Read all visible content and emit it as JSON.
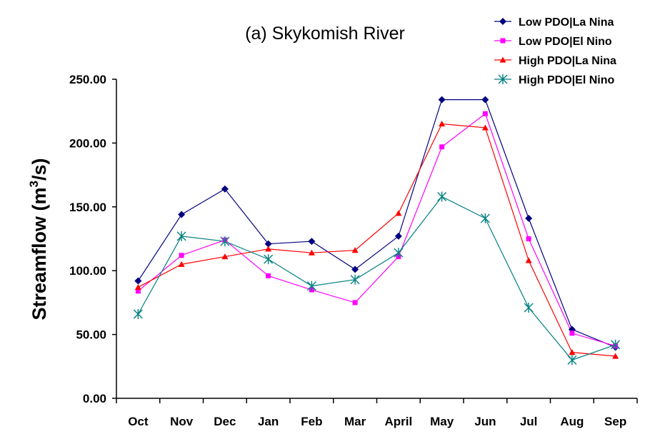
{
  "chart_data": {
    "type": "line",
    "title": "(a) Skykomish River",
    "ylabel_prefix": "Streamflow (m",
    "ylabel_sup": "3",
    "ylabel_suffix": "/s)",
    "xlabel": "",
    "categories": [
      "Oct",
      "Nov",
      "Dec",
      "Jan",
      "Feb",
      "Mar",
      "April",
      "May",
      "Jun",
      "Jul",
      "Aug",
      "Sep"
    ],
    "ylim": [
      0,
      250
    ],
    "yticks": [
      "0.00",
      "50.00",
      "100.00",
      "150.00",
      "200.00",
      "250.00"
    ],
    "legend_position": "top-right",
    "series": [
      {
        "name": "Low PDO|La Nina",
        "color": "#000080",
        "marker": "diamond",
        "values": [
          92,
          144,
          164,
          121,
          123,
          101,
          127,
          234,
          234,
          141,
          54,
          40
        ]
      },
      {
        "name": "Low PDO|El Nino",
        "color": "#ff00ff",
        "marker": "square",
        "values": [
          84,
          112,
          124,
          96,
          85,
          75,
          111,
          197,
          223,
          125,
          51,
          41
        ]
      },
      {
        "name": "High PDO|La Nina",
        "color": "#ff0000",
        "marker": "triangle",
        "values": [
          87,
          105,
          111,
          117,
          114,
          116,
          145,
          215,
          212,
          108,
          36,
          33
        ]
      },
      {
        "name": "High PDO|El Nino",
        "color": "#008080",
        "marker": "star",
        "values": [
          66,
          127,
          123,
          109,
          88,
          93,
          114,
          158,
          141,
          71,
          30,
          42
        ]
      }
    ]
  }
}
